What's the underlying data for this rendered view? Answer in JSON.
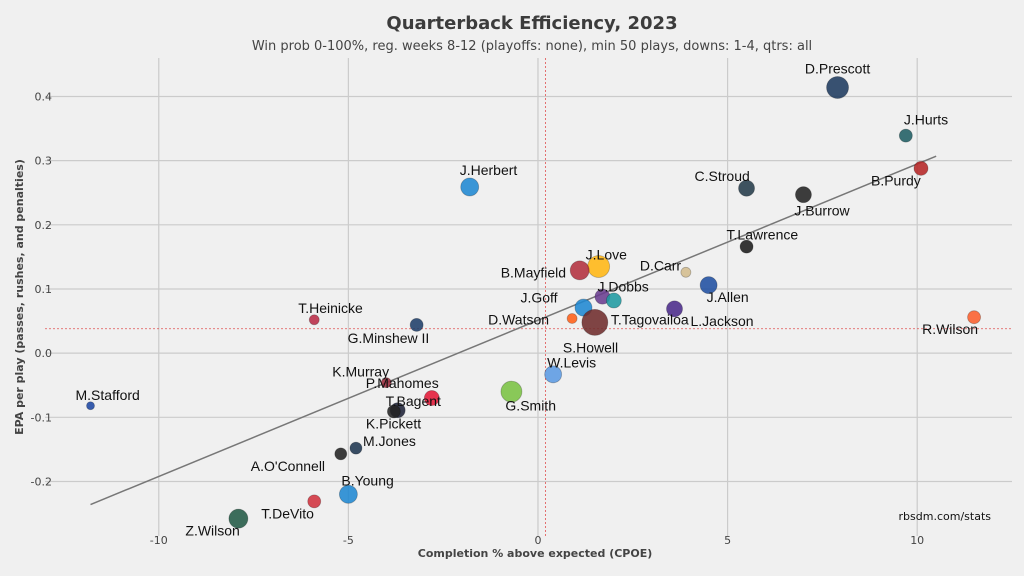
{
  "chart_data": {
    "type": "scatter",
    "title": "Quarterback Efficiency, 2023",
    "subtitle": "Win prob 0-100%, reg. weeks 8-12 (playoffs: none), min 50 plays, downs: 1-4, qtrs: all",
    "xlabel": "Completion % above expected (CPOE)",
    "ylabel": "EPA per play (passes, rushes, and penalties)",
    "xlim": [
      -13,
      12.5
    ],
    "ylim": [
      -0.285,
      0.46
    ],
    "xticks": [
      -10,
      -5,
      0,
      5,
      10
    ],
    "yticks": [
      -0.2,
      -0.1,
      0.0,
      0.1,
      0.2,
      0.3,
      0.4
    ],
    "ytick_labels": [
      "-0.2",
      "-0.1",
      "0.0",
      "0.1",
      "0.2",
      "0.3",
      "0.4"
    ],
    "grid": true,
    "reference_lines": {
      "x": 0.2,
      "y": 0.038
    },
    "trend_line": {
      "x": [
        -11.8,
        10.5
      ],
      "y": [
        -0.236,
        0.307
      ]
    },
    "source": "rbsdm.com/stats",
    "points": [
      {
        "name": "D.Prescott",
        "x": 7.9,
        "y": 0.414,
        "size": 11,
        "color": "#1e3a5f"
      },
      {
        "name": "J.Hurts",
        "x": 9.7,
        "y": 0.339,
        "size": 6.5,
        "color": "#1f5d63"
      },
      {
        "name": "B.Purdy",
        "x": 10.1,
        "y": 0.288,
        "size": 7,
        "color": "#b52525"
      },
      {
        "name": "C.Stroud",
        "x": 5.5,
        "y": 0.257,
        "size": 8,
        "color": "#243b4a"
      },
      {
        "name": "J.Burrow",
        "x": 7.0,
        "y": 0.247,
        "size": 8,
        "color": "#222222"
      },
      {
        "name": "J.Herbert",
        "x": -1.8,
        "y": 0.259,
        "size": 9,
        "color": "#1f88d2"
      },
      {
        "name": "T.Lawrence",
        "x": 5.5,
        "y": 0.166,
        "size": 6.5,
        "color": "#1b1b1b"
      },
      {
        "name": "D.Carr",
        "x": 3.9,
        "y": 0.126,
        "size": 5,
        "color": "#d3bc8d"
      },
      {
        "name": "J.Love",
        "x": 1.6,
        "y": 0.135,
        "size": 11,
        "color": "#ffb612"
      },
      {
        "name": "B.Mayfield",
        "x": 1.1,
        "y": 0.129,
        "size": 9.5,
        "color": "#b2303e"
      },
      {
        "name": "J.Allen",
        "x": 4.5,
        "y": 0.106,
        "size": 8.5,
        "color": "#1f4fa0"
      },
      {
        "name": "J.Dobbs",
        "x": 1.7,
        "y": 0.088,
        "size": 7.5,
        "color": "#6a3d8f"
      },
      {
        "name": "J.Goff",
        "x": 1.2,
        "y": 0.071,
        "size": 8.5,
        "color": "#1f88d2"
      },
      {
        "name": "L.Jackson",
        "x": 3.6,
        "y": 0.069,
        "size": 8,
        "color": "#4a2a8a"
      },
      {
        "name": "D.Watson",
        "x": 0.9,
        "y": 0.054,
        "size": 5,
        "color": "#ff5f17"
      },
      {
        "name": "T.Tagovailoa",
        "x": 2.0,
        "y": 0.082,
        "size": 7.5,
        "color": "#1f9aa0"
      },
      {
        "name": "S.Howell",
        "x": 1.5,
        "y": 0.048,
        "size": 13,
        "color": "#6e2b2b"
      },
      {
        "name": "T.Heinicke",
        "x": -5.9,
        "y": 0.052,
        "size": 5,
        "color": "#b82a45"
      },
      {
        "name": "G.Minshew II",
        "x": -3.2,
        "y": 0.044,
        "size": 6.5,
        "color": "#1e3d69"
      },
      {
        "name": "R.Wilson",
        "x": 11.5,
        "y": 0.056,
        "size": 6.5,
        "color": "#fb5e2c"
      },
      {
        "name": "W.Levis",
        "x": 0.4,
        "y": -0.033,
        "size": 8.5,
        "color": "#5b9ae3"
      },
      {
        "name": "G.Smith",
        "x": -0.7,
        "y": -0.06,
        "size": 10.5,
        "color": "#7ac142"
      },
      {
        "name": "K.Murray",
        "x": -4.0,
        "y": -0.046,
        "size": 5,
        "color": "#9b2a3b"
      },
      {
        "name": "P.Mahomes",
        "x": -2.8,
        "y": -0.07,
        "size": 7.5,
        "color": "#e31837"
      },
      {
        "name": "T.Bagent",
        "x": -3.7,
        "y": -0.089,
        "size": 7.5,
        "color": "#1e2238"
      },
      {
        "name": "K.Pickett",
        "x": -3.8,
        "y": -0.091,
        "size": 6.5,
        "color": "#222222"
      },
      {
        "name": "M.Stafford",
        "x": -11.8,
        "y": -0.082,
        "size": 4,
        "color": "#1d47a3"
      },
      {
        "name": "M.Jones",
        "x": -4.8,
        "y": -0.148,
        "size": 6,
        "color": "#1e3550"
      },
      {
        "name": "A.O'Connell",
        "x": -5.2,
        "y": -0.157,
        "size": 6,
        "color": "#222222"
      },
      {
        "name": "B.Young",
        "x": -5.0,
        "y": -0.22,
        "size": 9,
        "color": "#1f88d2"
      },
      {
        "name": "T.DeVito",
        "x": -5.9,
        "y": -0.231,
        "size": 6.5,
        "color": "#d0323d"
      },
      {
        "name": "Z.Wilson",
        "x": -7.9,
        "y": -0.258,
        "size": 9.5,
        "color": "#225a45"
      }
    ]
  }
}
